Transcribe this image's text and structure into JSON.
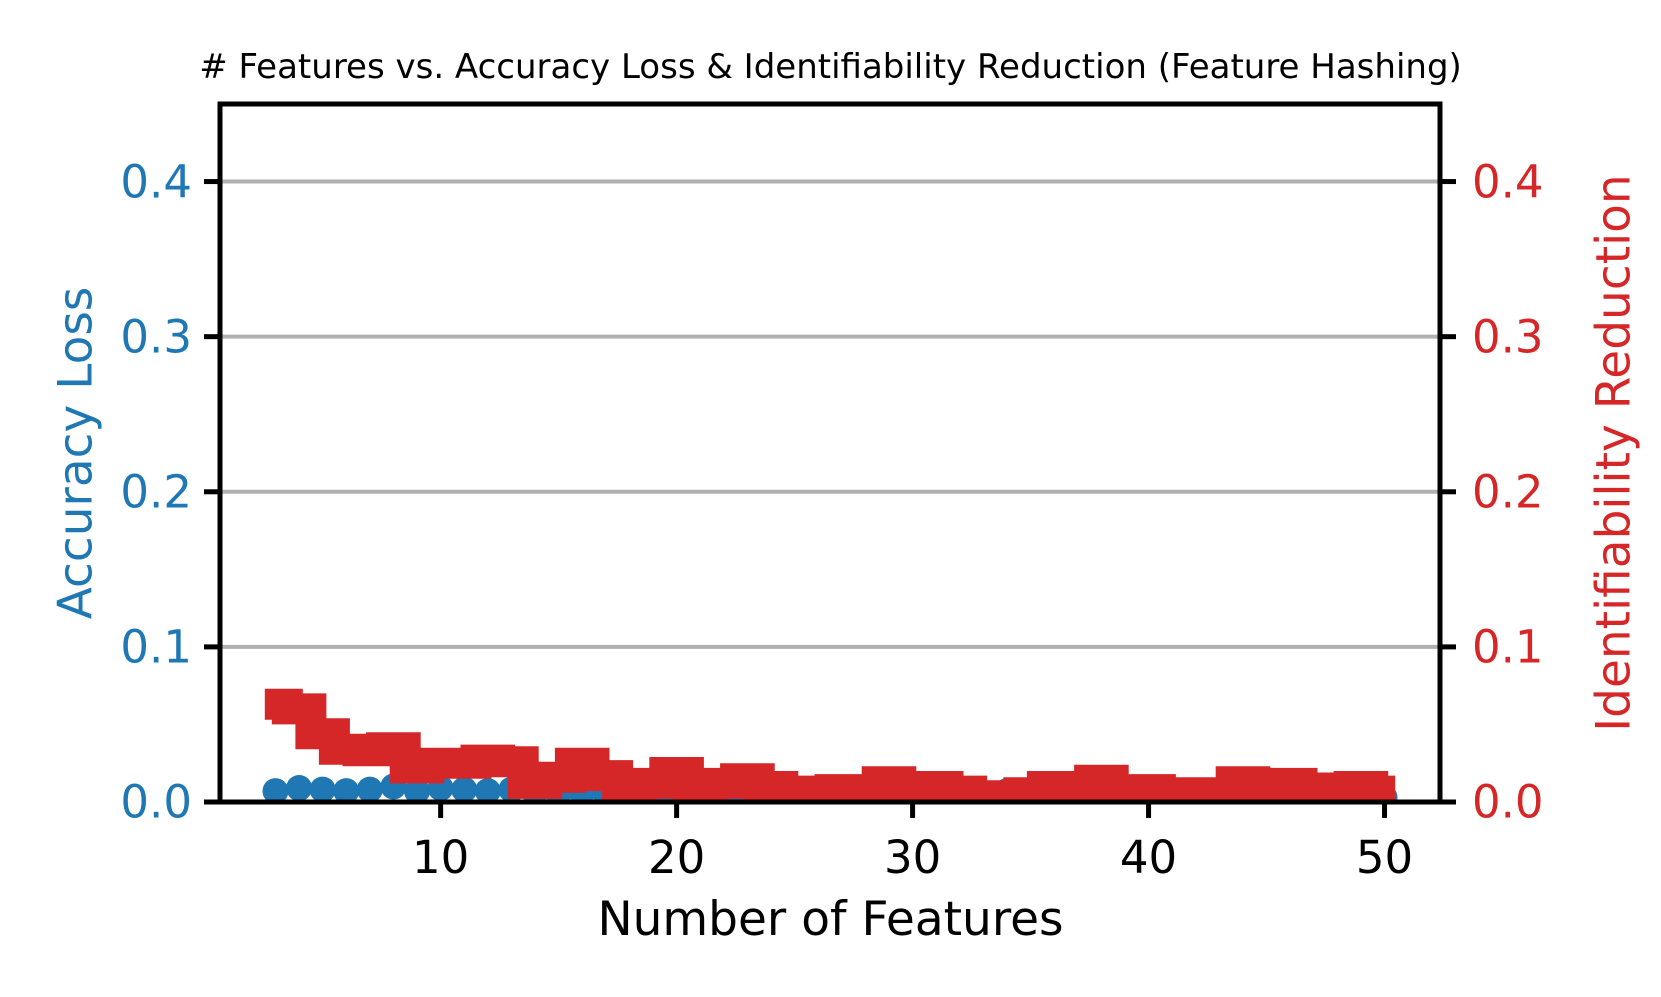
{
  "chart_data": {
    "type": "line",
    "title": "# Features vs. Accuracy Loss & Identifiability Reduction (Feature Hashing)",
    "xlabel": "Number of Features",
    "x": [
      3,
      4,
      5,
      6,
      7,
      8,
      9,
      10,
      11,
      12,
      13,
      14,
      15,
      16,
      17,
      18,
      19,
      20,
      21,
      22,
      23,
      24,
      25,
      26,
      27,
      28,
      29,
      30,
      31,
      32,
      33,
      34,
      35,
      36,
      37,
      38,
      39,
      40,
      41,
      42,
      43,
      44,
      45,
      46,
      47,
      48,
      49,
      50
    ],
    "series": [
      {
        "name": "Accuracy Loss",
        "axis": "left",
        "color": "#1f77b4",
        "style": "thick-line-with-round-markers",
        "values": [
          0.007,
          0.009,
          0.008,
          0.007,
          0.008,
          0.01,
          0.007,
          0.009,
          0.008,
          0.007,
          0.008,
          0.006,
          0.005,
          0.006,
          0.005,
          0.004,
          0.004,
          0.006,
          0.003,
          0.004,
          0.006,
          0.003,
          0.004,
          0.003,
          0.004,
          0.004,
          0.003,
          0.004,
          0.003,
          0.003,
          0.003,
          0.007,
          0.004,
          0.003,
          0.005,
          0.004,
          0.007,
          0.004,
          0.007,
          0.003,
          0.0075,
          0.003,
          0.0075,
          0.003,
          0.003,
          0.004,
          0.002,
          0.003
        ]
      },
      {
        "name": "Identifiability Reduction",
        "axis": "right",
        "color": "#d62728",
        "style": "thick-step-line",
        "values": [
          0.063,
          0.06,
          0.044,
          0.034,
          0.033,
          0.035,
          0.022,
          0.025,
          0.025,
          0.027,
          0.026,
          0.012,
          0.016,
          0.025,
          0.017,
          0.01,
          0.012,
          0.019,
          0.007,
          0.012,
          0.015,
          0.01,
          0.006,
          0.007,
          0.008,
          0.006,
          0.013,
          0.01,
          0.01,
          0.007,
          0.004,
          0.004,
          0.006,
          0.01,
          0.01,
          0.014,
          0.005,
          0.008,
          0.004,
          0.006,
          0.005,
          0.013,
          0.005,
          0.012,
          0.007,
          0.009,
          0.01,
          0.007
        ]
      }
    ],
    "x_axis": {
      "ticks": [
        "10",
        "20",
        "30",
        "40",
        "50"
      ],
      "tick_values": [
        10,
        20,
        30,
        40,
        50
      ],
      "range": [
        0.65,
        52.35
      ]
    },
    "left_axis": {
      "label": "Accuracy Loss",
      "color": "#1f77b4",
      "ticks": [
        "0.0",
        "0.1",
        "0.2",
        "0.3",
        "0.4"
      ],
      "tick_values": [
        0,
        0.1,
        0.2,
        0.3,
        0.4
      ],
      "range": [
        0,
        0.45
      ]
    },
    "right_axis": {
      "label": "Identifiability Reduction",
      "color": "#d62728",
      "ticks": [
        "0.0",
        "0.1",
        "0.2",
        "0.3",
        "0.4"
      ],
      "tick_values": [
        0,
        0.1,
        0.2,
        0.3,
        0.4
      ],
      "range": [
        0,
        0.45
      ]
    },
    "grid": {
      "show": true,
      "color": "#b0b0b0"
    },
    "spine_color": "#000000",
    "background": "#ffffff"
  }
}
